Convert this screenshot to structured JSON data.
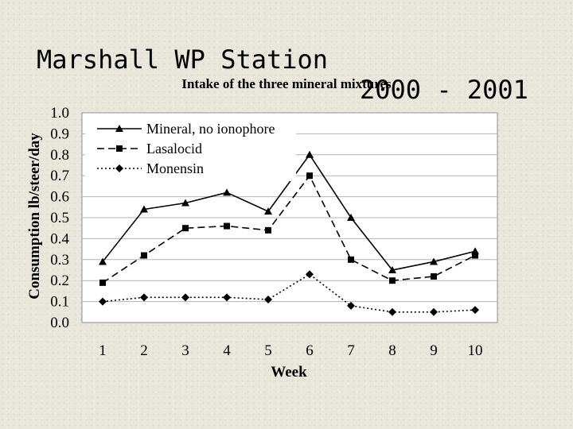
{
  "slide": {
    "title": "Marshall WP Station",
    "years": "2000 - 2001"
  },
  "chart_data": {
    "type": "line",
    "title": "Intake of the three mineral mixtures",
    "xlabel": "Week",
    "ylabel": "Consumption lb/steer/day",
    "categories": [
      "1",
      "2",
      "3",
      "4",
      "5",
      "6",
      "7",
      "8",
      "9",
      "10"
    ],
    "yticks": [
      "0.0",
      "0.1",
      "0.2",
      "0.3",
      "0.4",
      "0.5",
      "0.6",
      "0.7",
      "0.8",
      "0.9",
      "1.0"
    ],
    "ylim": [
      0,
      1.0
    ],
    "grid": true,
    "legend_position": "top-left",
    "series": [
      {
        "name": "Mineral, no ionophore",
        "marker": "triangle",
        "line": "solid",
        "values": [
          0.29,
          0.54,
          0.57,
          0.62,
          0.53,
          0.8,
          0.5,
          0.25,
          0.29,
          0.34
        ]
      },
      {
        "name": "Lasalocid",
        "marker": "square",
        "line": "dashed",
        "values": [
          0.19,
          0.32,
          0.45,
          0.46,
          0.44,
          0.7,
          0.3,
          0.2,
          0.22,
          0.32
        ]
      },
      {
        "name": "Monensin",
        "marker": "diamond",
        "line": "dotted",
        "values": [
          0.1,
          0.12,
          0.12,
          0.12,
          0.11,
          0.23,
          0.08,
          0.05,
          0.05,
          0.06
        ]
      }
    ]
  }
}
